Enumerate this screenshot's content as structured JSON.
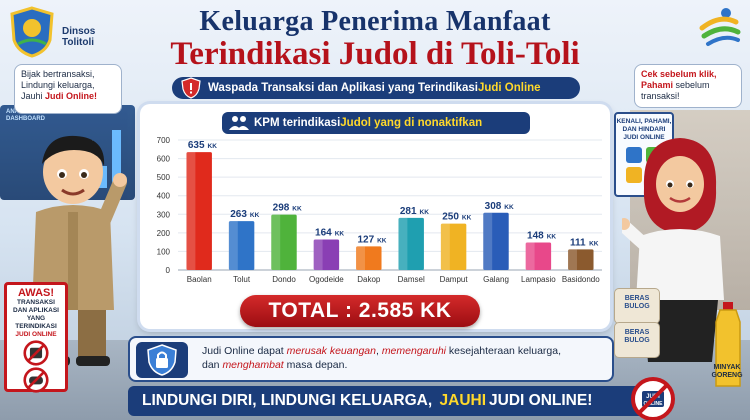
{
  "header": {
    "logo_left_text_line1": "Dinsos",
    "logo_left_text_line2": "Tolitoli",
    "title_line1": "Keluarga Penerima Manfaat",
    "title_line2": "Terindikasi Judol di Toli-Toli"
  },
  "warning_banner": {
    "text": "Waspada Transaksi dan Aplikasi yang Terindikasi ",
    "highlight": "Judi Online"
  },
  "chart_banner": {
    "text": "KPM terindikasi ",
    "highlight": "Judol yang di nonaktifkan"
  },
  "chart_data": {
    "type": "bar",
    "categories": [
      "Baolan",
      "Tolut",
      "Dondo",
      "Ogodeide",
      "Dakop",
      "Damsel",
      "Damput",
      "Galang",
      "Lampasio",
      "Basidondo"
    ],
    "values": [
      635,
      263,
      298,
      164,
      127,
      281,
      250,
      308,
      148,
      111
    ],
    "value_labels": [
      "635",
      "263",
      "298",
      "164",
      "127",
      "281",
      "250",
      "308",
      "148",
      "111"
    ],
    "unit_suffix": "KK",
    "colors": [
      "#e02a1c",
      "#2f74c8",
      "#4fb33b",
      "#8a3fb4",
      "#f07a1e",
      "#1f9fb0",
      "#f0b323",
      "#2a5db8",
      "#e8488a",
      "#8b5a2e"
    ],
    "yticks": [
      0,
      100,
      200,
      300,
      400,
      500,
      600,
      700
    ],
    "ylim": [
      0,
      700
    ],
    "grid": true,
    "legend": "none"
  },
  "total": {
    "text": "TOTAL : 2.585 KK"
  },
  "info_box": {
    "line1_a": "Judi Online dapat ",
    "line1_hl1": "merusak keuangan",
    "line1_b": ", ",
    "line1_hl2": "memengaruhi",
    "line1_c": " kesejahteraan keluarga,",
    "line2_a": "dan ",
    "line2_hl": "menghambat",
    "line2_b": " masa depan."
  },
  "footer": {
    "part1": "LINDUNGI DIRI, LINDUNGI KELUARGA,",
    "highlight": "JAUHI",
    "part2": "JUDI ONLINE!"
  },
  "bubble_left": {
    "line1": "Bijak bertransaksi,",
    "line2": "Lindungi keluarga,",
    "line3_a": "Jauhi ",
    "line3_hl": "Judi Online!"
  },
  "bubble_right": {
    "line1": "Cek sebelum klik,",
    "line2_hl": "Pahami",
    "line2_b": " sebelum",
    "line3": "transaksi!"
  },
  "board_right": {
    "line1": "KENALI, PAHAMI,",
    "line2": "DAN HINDARI",
    "line3": "JUDI ONLINE"
  },
  "awas_sign": {
    "title": "AWAS!",
    "line1": "TRANSAKSI",
    "line2": "DAN APLIKASI",
    "line3": "YANG TERINDIKASI",
    "line4": "JUDI ONLINE"
  },
  "dashboard_left": {
    "line1": "ANALYTICS",
    "line2": "DASHBOARD"
  },
  "sacks": {
    "label_line1": "BERAS",
    "label_line2": "BULOG"
  },
  "oil": {
    "line1": "MINYAK",
    "line2": "GORENG"
  },
  "no_gamble_sign": {
    "line1": "JUDI",
    "line2": "ONLINE"
  },
  "colors": {
    "navy": "#1b3d7a",
    "red": "#c4161c",
    "yellow": "#ffd92b"
  }
}
